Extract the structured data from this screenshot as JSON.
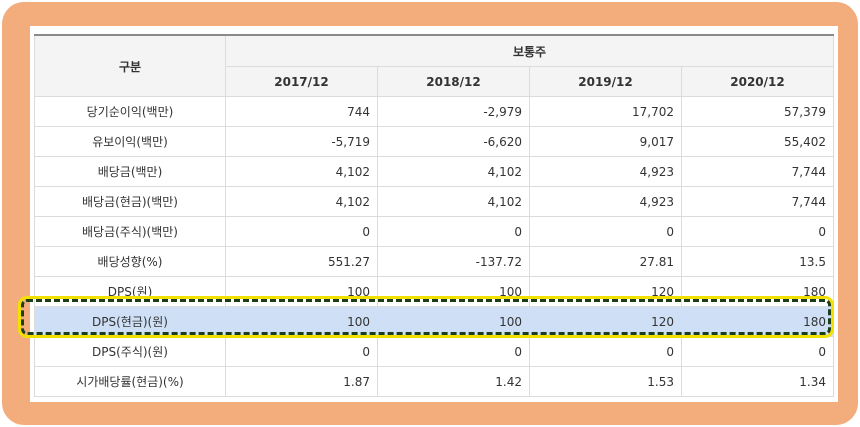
{
  "table": {
    "header": {
      "category_label": "구분",
      "group_label": "보통주",
      "years": [
        "2017/12",
        "2018/12",
        "2019/12",
        "2020/12"
      ]
    },
    "rows": [
      {
        "label": "당기순이익(백만)",
        "values": [
          "744",
          "-2,979",
          "17,702",
          "57,379"
        ]
      },
      {
        "label": "유보이익(백만)",
        "values": [
          "-5,719",
          "-6,620",
          "9,017",
          "55,402"
        ]
      },
      {
        "label": "배당금(백만)",
        "values": [
          "4,102",
          "4,102",
          "4,923",
          "7,744"
        ]
      },
      {
        "label": "배당금(현금)(백만)",
        "values": [
          "4,102",
          "4,102",
          "4,923",
          "7,744"
        ]
      },
      {
        "label": "배당금(주식)(백만)",
        "values": [
          "0",
          "0",
          "0",
          "0"
        ]
      },
      {
        "label": "배당성향(%)",
        "values": [
          "551.27",
          "-137.72",
          "27.81",
          "13.5"
        ]
      },
      {
        "label": "DPS(원)",
        "values": [
          "100",
          "100",
          "120",
          "180"
        ]
      },
      {
        "label": "DPS(현금)(원)",
        "values": [
          "100",
          "100",
          "120",
          "180"
        ]
      },
      {
        "label": "DPS(주식)(원)",
        "values": [
          "0",
          "0",
          "0",
          "0"
        ]
      },
      {
        "label": "시가배당률(현금)(%)",
        "values": [
          "1.87",
          "1.42",
          "1.53",
          "1.34"
        ]
      }
    ],
    "highlighted_row_index": 7
  },
  "colors": {
    "frame": "#f3ad7c",
    "highlight_fill": "#cfe0f6",
    "highlight_border": "#1a3d1a",
    "highlight_outline": "#f2e000"
  }
}
